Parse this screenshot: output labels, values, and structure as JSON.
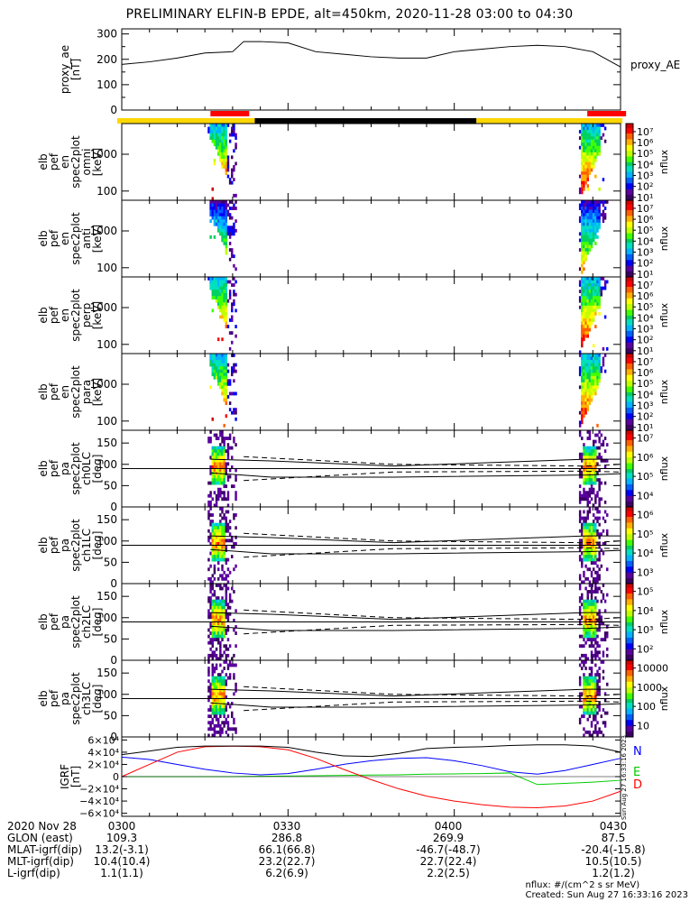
{
  "title": "PRELIMINARY ELFIN-B EPDE, alt=450km, 2020-11-28 03:00 to 04:30",
  "colors": {
    "science_zone": "#ff0000",
    "bar_day": "#ffd700",
    "bar_night": "#000000",
    "igrf_N": "#0000ff",
    "igrf_E": "#00cc00",
    "igrf_D": "#ff0000"
  },
  "chart_data": [
    {
      "id": "proxy_ae",
      "type": "line",
      "ylabel": [
        "proxy_ae",
        "[nT]"
      ],
      "legend": "proxy_AE",
      "ylim": [
        0,
        320
      ],
      "yticks": [
        "0",
        "100",
        "200",
        "300"
      ],
      "x": [
        "03:00",
        "03:05",
        "03:10",
        "03:15",
        "03:20",
        "03:22",
        "03:25",
        "03:30",
        "03:35",
        "03:40",
        "03:45",
        "03:50",
        "03:55",
        "04:00",
        "04:05",
        "04:10",
        "04:15",
        "04:20",
        "04:25",
        "04:30"
      ],
      "values": [
        180,
        190,
        205,
        225,
        230,
        270,
        270,
        265,
        230,
        220,
        210,
        205,
        205,
        230,
        240,
        250,
        255,
        250,
        230,
        170
      ]
    },
    {
      "id": "spec_en_omni",
      "type": "heatmap",
      "ylabel": [
        "elb",
        "pef",
        "en",
        "spec2plot",
        "omni",
        "[keV]"
      ],
      "yticks": [
        "100",
        "1000"
      ],
      "colorbar": {
        "label": "nflux",
        "ticks": [
          "10¹",
          "10²",
          "10³",
          "10⁴",
          "10⁵",
          "10⁶",
          "10⁷"
        ]
      }
    },
    {
      "id": "spec_en_anti",
      "type": "heatmap",
      "ylabel": [
        "elb",
        "pef",
        "en",
        "spec2plot",
        "anti",
        "[keV]"
      ],
      "yticks": [
        "100",
        "1000"
      ],
      "colorbar": {
        "label": "nflux",
        "ticks": [
          "10¹",
          "10²",
          "10³",
          "10⁴",
          "10⁵",
          "10⁶",
          "10⁷"
        ]
      }
    },
    {
      "id": "spec_en_perp",
      "type": "heatmap",
      "ylabel": [
        "elb",
        "pef",
        "en",
        "spec2plot",
        "perp",
        "[keV]"
      ],
      "yticks": [
        "100",
        "1000"
      ],
      "colorbar": {
        "label": "nflux",
        "ticks": [
          "10¹",
          "10²",
          "10³",
          "10⁴",
          "10⁵",
          "10⁶",
          "10⁷"
        ]
      }
    },
    {
      "id": "spec_en_para",
      "type": "heatmap",
      "ylabel": [
        "elb",
        "pef",
        "en",
        "spec2plot",
        "para",
        "[keV]"
      ],
      "yticks": [
        "100",
        "1000"
      ],
      "colorbar": {
        "label": "nflux",
        "ticks": [
          "10¹",
          "10²",
          "10³",
          "10⁴",
          "10⁵",
          "10⁶",
          "10⁷"
        ]
      }
    },
    {
      "id": "spec_pa_ch0",
      "type": "heatmap",
      "ylabel": [
        "elb",
        "pef",
        "pa",
        "spec2plot",
        "ch0LC",
        "[deg]"
      ],
      "yticks": [
        "0",
        "50",
        "100",
        "150"
      ],
      "colorbar": {
        "label": "nflux",
        "ticks": [
          "10⁴",
          "10⁵",
          "10⁶",
          "10⁷"
        ]
      }
    },
    {
      "id": "spec_pa_ch1",
      "type": "heatmap",
      "ylabel": [
        "elb",
        "pef",
        "pa",
        "spec2plot",
        "ch1LC",
        "[deg]"
      ],
      "yticks": [
        "0",
        "50",
        "100",
        "150"
      ],
      "colorbar": {
        "label": "nflux",
        "ticks": [
          "10³",
          "10⁴",
          "10⁵",
          "10⁶"
        ]
      }
    },
    {
      "id": "spec_pa_ch2",
      "type": "heatmap",
      "ylabel": [
        "elb",
        "pef",
        "pa",
        "spec2plot",
        "ch2LC",
        "[deg]"
      ],
      "yticks": [
        "0",
        "50",
        "100",
        "150"
      ],
      "colorbar": {
        "label": "nflux",
        "ticks": [
          "10²",
          "10³",
          "10⁴",
          "10⁵"
        ]
      }
    },
    {
      "id": "spec_pa_ch3",
      "type": "heatmap",
      "ylabel": [
        "elb",
        "pef",
        "pa",
        "spec2plot",
        "ch3LC",
        "[deg]"
      ],
      "yticks": [
        "0",
        "50",
        "100",
        "150"
      ],
      "colorbar": {
        "label": "nflux",
        "ticks": [
          "10",
          "100",
          "1000",
          "10000"
        ]
      }
    },
    {
      "id": "igrf",
      "type": "line",
      "ylabel": [
        "IGRF",
        "[nT]"
      ],
      "ylim": [
        -65000,
        65000
      ],
      "yticks": [
        "−6×10⁴",
        "−4×10⁴",
        "−2×10⁴",
        "0",
        "2×10⁴",
        "4×10⁴",
        "6×10⁴"
      ],
      "x": [
        "03:00",
        "03:05",
        "03:10",
        "03:15",
        "03:20",
        "03:25",
        "03:30",
        "03:35",
        "03:40",
        "03:45",
        "03:50",
        "03:55",
        "04:00",
        "04:05",
        "04:10",
        "04:15",
        "04:20",
        "04:25",
        "04:30"
      ],
      "series": [
        {
          "name": "N",
          "values": [
            32000,
            28000,
            20000,
            12000,
            6000,
            3000,
            5000,
            12000,
            20000,
            26000,
            30000,
            31000,
            26000,
            18000,
            8000,
            4000,
            10000,
            20000,
            30000
          ]
        },
        {
          "name": "E",
          "values": [
            0,
            0,
            0,
            0,
            0,
            500,
            1000,
            1500,
            2000,
            2500,
            3000,
            4000,
            4500,
            5000,
            6000,
            -13000,
            -11000,
            -9000,
            -6000
          ]
        },
        {
          "name": "D",
          "values": [
            0,
            20000,
            40000,
            49000,
            50000,
            49000,
            44000,
            30000,
            12000,
            -5000,
            -20000,
            -32000,
            -40000,
            -46000,
            -50000,
            -51000,
            -48000,
            -40000,
            -24000
          ]
        }
      ],
      "total_values": [
        36000,
        42000,
        48000,
        50000,
        50000,
        50000,
        48000,
        40000,
        34000,
        33000,
        38000,
        46000,
        48000,
        49000,
        51000,
        52000,
        52000,
        50000,
        40000
      ],
      "side_label": "Sun Aug 27 16:33:16 2023"
    }
  ],
  "time_ticks": [
    "0300",
    "0330",
    "0400",
    "0430"
  ],
  "footer": {
    "rows": [
      {
        "label": "2020 Nov 28",
        "values": [
          "0300",
          "0330",
          "0400",
          "0430"
        ]
      },
      {
        "label": "GLON (east)",
        "values": [
          "109.3",
          "286.8",
          "269.9",
          "87.5"
        ]
      },
      {
        "label": "MLAT-igrf(dip)",
        "values": [
          "13.2(-3.1)",
          "66.1(66.8)",
          "-46.7(-48.7)",
          "-20.4(-15.8)"
        ]
      },
      {
        "label": "MLT-igrf(dip)",
        "values": [
          "10.4(10.4)",
          "23.2(22.7)",
          "22.7(22.4)",
          "10.5(10.5)"
        ]
      },
      {
        "label": "L-igrf(dip)",
        "values": [
          "1.1(1.1)",
          "6.2(6.9)",
          "2.2(2.5)",
          "1.2(1.2)"
        ]
      }
    ],
    "units": "nflux: #/(cm^2 s sr MeV)",
    "created": "Created: Sun Aug 27 16:33:16 2023"
  }
}
